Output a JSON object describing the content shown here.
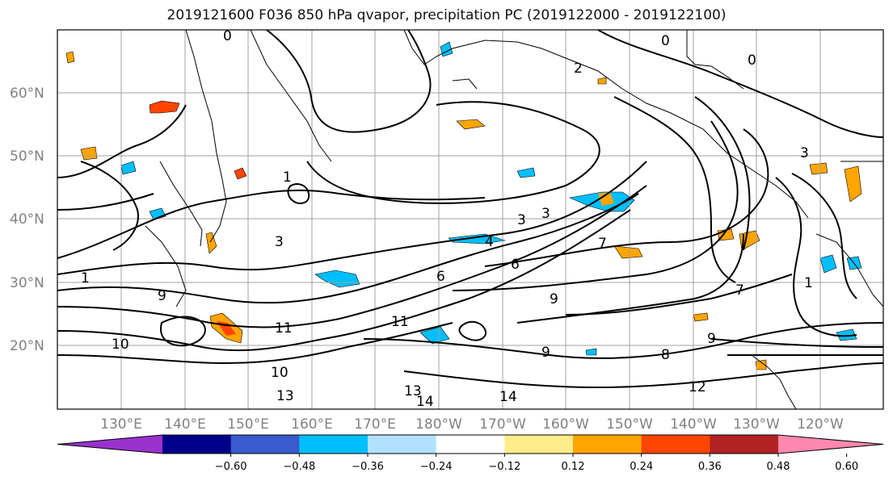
{
  "title": "2019121600 F036 850 hPa qvapor, precipitation PC (2019122000 - 2019122100)",
  "map": {
    "lat_labels": [
      "60°N",
      "50°N",
      "40°N",
      "30°N",
      "20°N"
    ],
    "lon_labels": [
      "130°E",
      "140°E",
      "150°E",
      "160°E",
      "170°E",
      "180°W",
      "170°W",
      "160°W",
      "150°W",
      "140°W",
      "130°W",
      "120°W"
    ],
    "contour_labels": [
      {
        "text": "0"
      },
      {
        "text": "0"
      },
      {
        "text": "0"
      },
      {
        "text": "2"
      },
      {
        "text": "1"
      },
      {
        "text": "3"
      },
      {
        "text": "3"
      },
      {
        "text": "3"
      },
      {
        "text": "3"
      },
      {
        "text": "4"
      },
      {
        "text": "6"
      },
      {
        "text": "6"
      },
      {
        "text": "7"
      },
      {
        "text": "1"
      },
      {
        "text": "1"
      },
      {
        "text": "9"
      },
      {
        "text": "9"
      },
      {
        "text": "10"
      },
      {
        "text": "10"
      },
      {
        "text": "11"
      },
      {
        "text": "11"
      },
      {
        "text": "13"
      },
      {
        "text": "13"
      },
      {
        "text": "14"
      },
      {
        "text": "14"
      },
      {
        "text": "12"
      },
      {
        "text": "9"
      },
      {
        "text": "8"
      },
      {
        "text": "9"
      },
      {
        "text": "7"
      }
    ]
  },
  "colorbar": {
    "colors": [
      "#9932cc",
      "#00008b",
      "#3a5bcd",
      "#00bfff",
      "#b0e2ff",
      "#ffffff",
      "#ffec8b",
      "#ffa500",
      "#ff4500",
      "#b22222",
      "#ff88b0"
    ],
    "ticks": [
      "−0.60",
      "−0.48",
      "−0.36",
      "−0.24",
      "−0.12",
      "0.12",
      "0.24",
      "0.36",
      "0.48",
      "0.60"
    ]
  },
  "colors": {
    "contour": "#000000",
    "grid": "#a0a0a0",
    "coast": "#000000",
    "negative_fill": "#00bfff",
    "positive_fill": "#ffa500"
  }
}
